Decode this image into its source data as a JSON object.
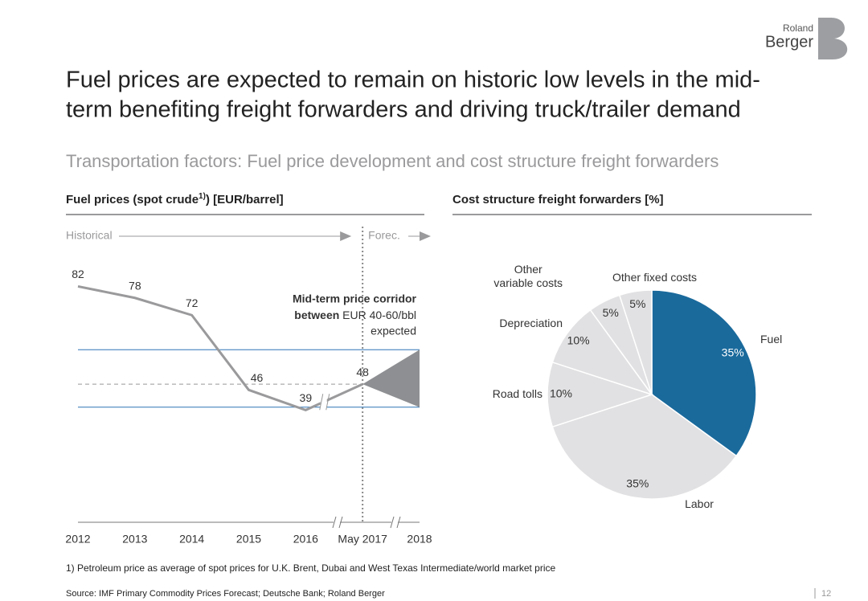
{
  "header": {
    "title_lines": [
      "Fuel prices are expected to remain on historic low levels in the mid-",
      "term benefiting freight forwarders and driving truck/trailer demand"
    ],
    "subtitle": "Transportation factors: Fuel price development and cost structure freight forwarders",
    "logo": [
      "Roland",
      "Berger"
    ]
  },
  "chart_data": [
    {
      "type": "line",
      "title": "Fuel prices (spot crude",
      "title_sup": "1)",
      "title_end": ") [EUR/barrel]",
      "categories": [
        "2012",
        "2013",
        "2014",
        "2015",
        "2016",
        "May 2017",
        "2018"
      ],
      "values": [
        82,
        78,
        72,
        46,
        39,
        48,
        null
      ],
      "color": "#9a9a9c",
      "ylim": [
        0,
        100
      ],
      "corridor": [
        40,
        60
      ],
      "corridor_color": "#2e75b6",
      "corridor_fill": "#8e8f92",
      "period_labels": [
        "Historical",
        "Forec."
      ],
      "annotation": [
        "Mid-term price corridor",
        "between",
        "EUR 40-60/bbl",
        "expected"
      ]
    },
    {
      "type": "pie",
      "title": "Cost structure freight forwarders [%]",
      "categories": [
        "Fuel",
        "Labor",
        "Road tolls",
        "Depreciation",
        "Other\nvariable costs",
        "Other fixed costs"
      ],
      "values": [
        35,
        35,
        10,
        10,
        5,
        5
      ],
      "value_labels": [
        "35%",
        "35%",
        "10%",
        "10%",
        "5%",
        "5%"
      ],
      "colors": [
        "#1a6a9c",
        "#e1e1e3",
        "#e1e1e3",
        "#e1e1e3",
        "#e1e1e3",
        "#e1e1e3"
      ]
    }
  ],
  "footnote": "1) Petroleum price as average of spot prices for U.K. Brent, Dubai and West Texas Intermediate/world market price",
  "source": "Source: IMF Primary Commodity Prices Forecast; Deutsche Bank; Roland Berger",
  "page": "12"
}
